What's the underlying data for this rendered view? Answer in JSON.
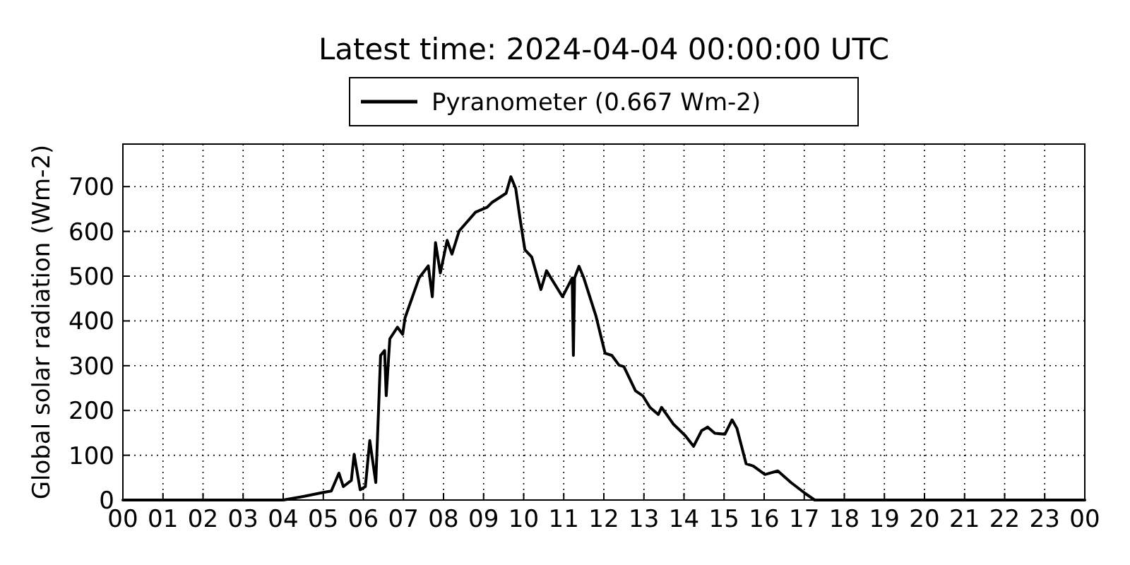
{
  "chart_data": {
    "type": "line",
    "title": "Latest time: 2024-04-04 00:00:00 UTC",
    "ylabel": "Global solar radiation (Wm-2)",
    "x": [
      0,
      1,
      2,
      3,
      4,
      4.5,
      5,
      5.2,
      5.39,
      5.5,
      5.7,
      5.77,
      5.92,
      6.05,
      6.16,
      6.31,
      6.43,
      6.53,
      6.57,
      6.66,
      6.85,
      6.98,
      7.04,
      7.39,
      7.62,
      7.72,
      7.8,
      7.92,
      8.09,
      8.21,
      8.39,
      8.8,
      9.09,
      9.2,
      9.56,
      9.68,
      9.8,
      9.91,
      10.03,
      10.2,
      10.43,
      10.57,
      10.97,
      11.21,
      11.24,
      11.27,
      11.38,
      11.5,
      11.8,
      12.03,
      12.2,
      12.38,
      12.5,
      12.79,
      12.97,
      13.15,
      13.36,
      13.44,
      13.73,
      14.03,
      14.24,
      14.44,
      14.59,
      14.77,
      15.02,
      15.2,
      15.32,
      15.55,
      15.73,
      16.02,
      16.34,
      16.67,
      17.02,
      17.26,
      18,
      20,
      22,
      24
    ],
    "series": [
      {
        "name": "Pyranometer (0.667 Wm-2)",
        "color": "#000000",
        "values": [
          0,
          0,
          0,
          0,
          0,
          8,
          17,
          20,
          60,
          30,
          44,
          102,
          23,
          30,
          133,
          39,
          323,
          334,
          233,
          360,
          386,
          370,
          407,
          496,
          523,
          454,
          575,
          507,
          580,
          549,
          601,
          643,
          654,
          664,
          685,
          722,
          696,
          628,
          559,
          543,
          470,
          512,
          454,
          496,
          323,
          496,
          522,
          496,
          412,
          328,
          323,
          301,
          298,
          244,
          233,
          207,
          191,
          207,
          170,
          144,
          120,
          155,
          163,
          149,
          147,
          179,
          160,
          81,
          76,
          57,
          65,
          39,
          15,
          0,
          0,
          0,
          0,
          0
        ]
      }
    ],
    "xlim": [
      0,
      24
    ],
    "xticks": [
      {
        "value": 0,
        "label": "00"
      },
      {
        "value": 1,
        "label": "01"
      },
      {
        "value": 2,
        "label": "02"
      },
      {
        "value": 3,
        "label": "03"
      },
      {
        "value": 4,
        "label": "04"
      },
      {
        "value": 5,
        "label": "05"
      },
      {
        "value": 6,
        "label": "06"
      },
      {
        "value": 7,
        "label": "07"
      },
      {
        "value": 8,
        "label": "08"
      },
      {
        "value": 9,
        "label": "09"
      },
      {
        "value": 10,
        "label": "10"
      },
      {
        "value": 11,
        "label": "11"
      },
      {
        "value": 12,
        "label": "12"
      },
      {
        "value": 13,
        "label": "13"
      },
      {
        "value": 14,
        "label": "14"
      },
      {
        "value": 15,
        "label": "15"
      },
      {
        "value": 16,
        "label": "16"
      },
      {
        "value": 17,
        "label": "17"
      },
      {
        "value": 18,
        "label": "18"
      },
      {
        "value": 19,
        "label": "19"
      },
      {
        "value": 20,
        "label": "20"
      },
      {
        "value": 21,
        "label": "21"
      },
      {
        "value": 22,
        "label": "22"
      },
      {
        "value": 23,
        "label": "23"
      },
      {
        "value": 24,
        "label": "00"
      }
    ],
    "ylim": [
      0,
      795
    ],
    "yticks": [
      0,
      100,
      200,
      300,
      400,
      500,
      600,
      700
    ],
    "grid": true,
    "legend": "top",
    "line_style": "solid"
  }
}
